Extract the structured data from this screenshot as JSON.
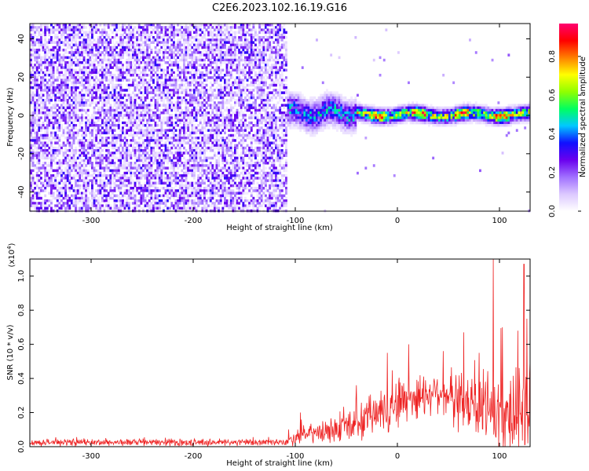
{
  "chart_data": [
    {
      "type": "heatmap",
      "title": "C2E6.2023.102.16.19.G16",
      "xlabel": "Height of straight line (km)",
      "ylabel": "Frequency (Hz)",
      "xlim": [
        -360,
        130
      ],
      "ylim": [
        -50,
        48
      ],
      "xticks": [
        "-300",
        "-200",
        "-100",
        "0",
        "100"
      ],
      "yticks": [
        "-40",
        "-20",
        "0",
        "20",
        "40"
      ],
      "colorbar": {
        "label": "Normalized spectral amplitude",
        "range": [
          0.0,
          0.97
        ],
        "ticks": [
          "0.0",
          "0.2",
          "0.4",
          "0.6",
          "0.8"
        ],
        "colors": [
          "#ffffff",
          "#dcc8ff",
          "#a070ff",
          "#6a00ee",
          "#1010ff",
          "#00c8ff",
          "#00ff60",
          "#90ff00",
          "#ffff00",
          "#ff8000",
          "#ff0000",
          "#ff0070"
        ]
      },
      "regions": [
        {
          "x_range": [
            -360,
            -108
          ],
          "y_range": [
            -50,
            48
          ],
          "amplitude": "0.05-0.30",
          "description_of_texture": "speckled noise"
        },
        {
          "x_range": [
            -108,
            -40
          ],
          "y_center": 2,
          "y_halfwidth": 7,
          "amplitude": "0.2-0.55"
        },
        {
          "x_range": [
            -40,
            130
          ],
          "y_center": 1,
          "y_halfwidth": 3.5,
          "amplitude": "0.3-0.97",
          "peak": "0.85-0.97"
        }
      ]
    },
    {
      "type": "line",
      "xlabel": "Height of straight line (km)",
      "ylabel": "SNR (10 * v/v)",
      "yscale_label": "(x10^4)",
      "xlim": [
        -360,
        130
      ],
      "ylim": [
        0,
        1.1
      ],
      "xticks": [
        "-300",
        "-200",
        "-100",
        "0",
        "100"
      ],
      "yticks": [
        "0.0",
        "0.2",
        "0.4",
        "0.6",
        "0.8",
        "1.0"
      ],
      "color": "#ee2222",
      "envelope": [
        {
          "x": -360,
          "mean": 0.025,
          "spread": 0.02
        },
        {
          "x": -110,
          "mean": 0.025,
          "spread": 0.02
        },
        {
          "x": -100,
          "mean": 0.06,
          "spread": 0.05
        },
        {
          "x": -50,
          "mean": 0.11,
          "spread": 0.08
        },
        {
          "x": -30,
          "mean": 0.16,
          "spread": 0.12
        },
        {
          "x": 0,
          "mean": 0.26,
          "spread": 0.16
        },
        {
          "x": 40,
          "mean": 0.33,
          "spread": 0.12
        },
        {
          "x": 60,
          "mean": 0.26,
          "spread": 0.18
        },
        {
          "x": 100,
          "mean": 0.2,
          "spread": 0.25
        },
        {
          "x": 130,
          "mean": 0.18,
          "spread": 0.25
        }
      ],
      "peaks": [
        {
          "x": 94,
          "y": 1.1
        },
        {
          "x": 124,
          "y": 1.07
        },
        {
          "x": 127,
          "y": 0.75
        },
        {
          "x": 103,
          "y": 0.7
        },
        {
          "x": 65,
          "y": 0.67
        },
        {
          "x": 118,
          "y": 0.68
        },
        {
          "x": -10,
          "y": 0.55
        },
        {
          "x": 11,
          "y": 0.6
        },
        {
          "x": 45,
          "y": 0.56
        },
        {
          "x": 80,
          "y": 0.55
        },
        {
          "x": -40,
          "y": 0.36
        },
        {
          "x": -95,
          "y": 0.2
        }
      ]
    }
  ]
}
